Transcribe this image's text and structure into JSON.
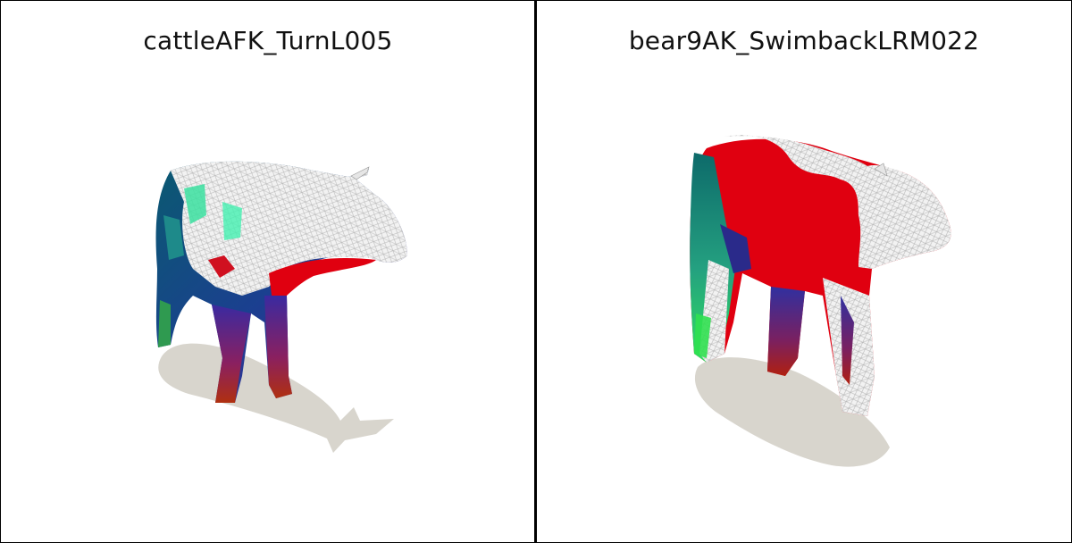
{
  "panels": [
    {
      "title": "cattleAFK_TurnL005"
    },
    {
      "title": "bear9AK_SwimbackLRM022"
    }
  ]
}
